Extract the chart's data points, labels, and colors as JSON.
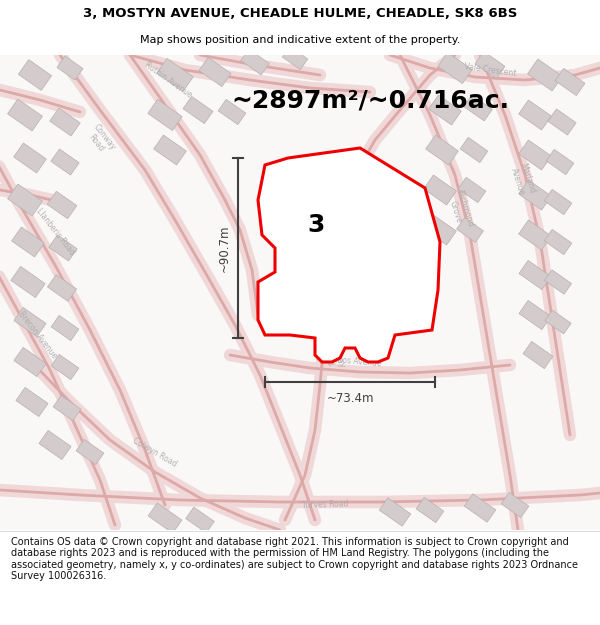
{
  "title_line1": "3, MOSTYN AVENUE, CHEADLE HULME, CHEADLE, SK8 6BS",
  "title_line2": "Map shows position and indicative extent of the property.",
  "area_text": "~2897m²/~0.716ac.",
  "label_number": "3",
  "dim_height": "~90.7m",
  "dim_width": "~73.4m",
  "footer_text": "Contains OS data © Crown copyright and database right 2021. This information is subject to Crown copyright and database rights 2023 and is reproduced with the permission of HM Land Registry. The polygons (including the associated geometry, namely x, y co-ordinates) are subject to Crown copyright and database rights 2023 Ordnance Survey 100026316.",
  "bg_color": "#ffffff",
  "map_bg": "#f9f6f6",
  "road_color": "#e8b0b0",
  "road_fill": "#f5e0e0",
  "property_color": "#ee0000",
  "dim_color": "#404040",
  "title_fontsize": 9.5,
  "subtitle_fontsize": 8.0,
  "area_fontsize": 18,
  "label_fontsize": 18,
  "dim_fontsize": 8.5,
  "footer_fontsize": 7.0
}
